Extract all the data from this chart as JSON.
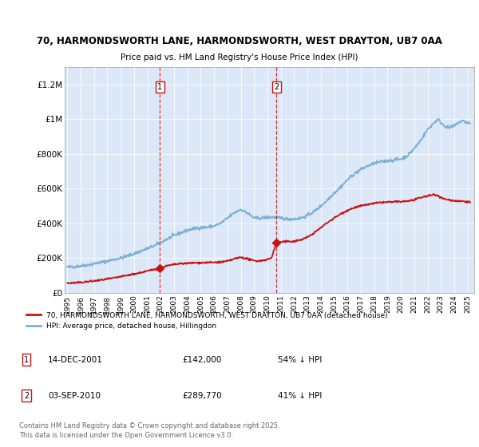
{
  "title_line1": "70, HARMONDSWORTH LANE, HARMONDSWORTH, WEST DRAYTON, UB7 0AA",
  "title_line2": "Price paid vs. HM Land Registry's House Price Index (HPI)",
  "background_color": "#ffffff",
  "plot_bg": "#dce8f8",
  "fill_between_color": "#dce8f8",
  "red_line_label": "70, HARMONDSWORTH LANE, HARMONDSWORTH, WEST DRAYTON, UB7 0AA (detached house)",
  "blue_line_label": "HPI: Average price, detached house, Hillingdon",
  "sale1_date": "14-DEC-2001",
  "sale1_price": 142000,
  "sale1_note": "54% ↓ HPI",
  "sale2_date": "03-SEP-2010",
  "sale2_price": 289770,
  "sale2_note": "41% ↓ HPI",
  "footer": "Contains HM Land Registry data © Crown copyright and database right 2025.\nThis data is licensed under the Open Government Licence v3.0.",
  "ylim": [
    0,
    1300000
  ],
  "xlim_start": 1994.8,
  "xlim_end": 2025.5,
  "sale1_x": 2001.95,
  "sale2_x": 2010.67,
  "hpi_color": "#7ab0d4",
  "price_color": "#cc1111",
  "vline_color": "#cc1111",
  "marker_color": "#cc1111",
  "hpi_anchors": [
    [
      1995.0,
      148000
    ],
    [
      1995.5,
      150000
    ],
    [
      1996.0,
      155000
    ],
    [
      1996.5,
      160000
    ],
    [
      1997.0,
      168000
    ],
    [
      1997.5,
      175000
    ],
    [
      1998.0,
      183000
    ],
    [
      1998.5,
      192000
    ],
    [
      1999.0,
      200000
    ],
    [
      1999.5,
      212000
    ],
    [
      2000.0,
      225000
    ],
    [
      2000.5,
      240000
    ],
    [
      2001.0,
      255000
    ],
    [
      2001.5,
      270000
    ],
    [
      2002.0,
      290000
    ],
    [
      2002.5,
      310000
    ],
    [
      2003.0,
      330000
    ],
    [
      2003.5,
      345000
    ],
    [
      2004.0,
      360000
    ],
    [
      2004.5,
      370000
    ],
    [
      2005.0,
      375000
    ],
    [
      2005.5,
      378000
    ],
    [
      2006.0,
      385000
    ],
    [
      2006.5,
      400000
    ],
    [
      2007.0,
      430000
    ],
    [
      2007.5,
      460000
    ],
    [
      2008.0,
      480000
    ],
    [
      2008.5,
      460000
    ],
    [
      2009.0,
      430000
    ],
    [
      2009.5,
      430000
    ],
    [
      2010.0,
      435000
    ],
    [
      2010.5,
      435000
    ],
    [
      2011.0,
      430000
    ],
    [
      2011.5,
      425000
    ],
    [
      2012.0,
      425000
    ],
    [
      2012.5,
      430000
    ],
    [
      2013.0,
      445000
    ],
    [
      2013.5,
      468000
    ],
    [
      2014.0,
      500000
    ],
    [
      2014.5,
      535000
    ],
    [
      2015.0,
      575000
    ],
    [
      2015.5,
      610000
    ],
    [
      2016.0,
      650000
    ],
    [
      2016.5,
      685000
    ],
    [
      2017.0,
      710000
    ],
    [
      2017.5,
      730000
    ],
    [
      2018.0,
      745000
    ],
    [
      2018.5,
      755000
    ],
    [
      2019.0,
      760000
    ],
    [
      2019.5,
      765000
    ],
    [
      2020.0,
      770000
    ],
    [
      2020.5,
      790000
    ],
    [
      2021.0,
      830000
    ],
    [
      2021.5,
      880000
    ],
    [
      2022.0,
      940000
    ],
    [
      2022.5,
      980000
    ],
    [
      2022.8,
      1000000
    ],
    [
      2023.0,
      980000
    ],
    [
      2023.3,
      960000
    ],
    [
      2023.6,
      950000
    ],
    [
      2024.0,
      960000
    ],
    [
      2024.3,
      980000
    ],
    [
      2024.6,
      990000
    ],
    [
      2025.0,
      980000
    ],
    [
      2025.2,
      975000
    ]
  ],
  "price_anchors": [
    [
      1995.0,
      55000
    ],
    [
      1995.5,
      57000
    ],
    [
      1996.0,
      60000
    ],
    [
      1996.5,
      64000
    ],
    [
      1997.0,
      68000
    ],
    [
      1997.5,
      73000
    ],
    [
      1998.0,
      79000
    ],
    [
      1998.5,
      85000
    ],
    [
      1999.0,
      93000
    ],
    [
      1999.5,
      100000
    ],
    [
      2000.0,
      108000
    ],
    [
      2000.5,
      116000
    ],
    [
      2001.0,
      125000
    ],
    [
      2001.5,
      135000
    ],
    [
      2001.95,
      142000
    ],
    [
      2002.3,
      152000
    ],
    [
      2002.8,
      160000
    ],
    [
      2003.2,
      165000
    ],
    [
      2003.6,
      168000
    ],
    [
      2004.0,
      170000
    ],
    [
      2004.5,
      172000
    ],
    [
      2005.0,
      173000
    ],
    [
      2005.5,
      174000
    ],
    [
      2006.0,
      175000
    ],
    [
      2006.5,
      177000
    ],
    [
      2007.0,
      182000
    ],
    [
      2007.5,
      195000
    ],
    [
      2008.0,
      205000
    ],
    [
      2008.5,
      195000
    ],
    [
      2009.0,
      185000
    ],
    [
      2009.3,
      183000
    ],
    [
      2009.6,
      186000
    ],
    [
      2010.0,
      192000
    ],
    [
      2010.3,
      200000
    ],
    [
      2010.67,
      289770
    ],
    [
      2011.0,
      292000
    ],
    [
      2011.3,
      295000
    ],
    [
      2011.6,
      295000
    ],
    [
      2012.0,
      297000
    ],
    [
      2012.5,
      305000
    ],
    [
      2013.0,
      320000
    ],
    [
      2013.5,
      345000
    ],
    [
      2014.0,
      375000
    ],
    [
      2014.5,
      405000
    ],
    [
      2015.0,
      430000
    ],
    [
      2015.5,
      455000
    ],
    [
      2016.0,
      475000
    ],
    [
      2016.5,
      490000
    ],
    [
      2017.0,
      500000
    ],
    [
      2017.5,
      508000
    ],
    [
      2018.0,
      515000
    ],
    [
      2018.5,
      520000
    ],
    [
      2019.0,
      522000
    ],
    [
      2019.5,
      524000
    ],
    [
      2020.0,
      525000
    ],
    [
      2020.5,
      528000
    ],
    [
      2021.0,
      535000
    ],
    [
      2021.5,
      548000
    ],
    [
      2022.0,
      558000
    ],
    [
      2022.5,
      565000
    ],
    [
      2022.8,
      560000
    ],
    [
      2023.0,
      548000
    ],
    [
      2023.3,
      540000
    ],
    [
      2023.6,
      535000
    ],
    [
      2024.0,
      530000
    ],
    [
      2024.5,
      528000
    ],
    [
      2025.0,
      525000
    ],
    [
      2025.2,
      522000
    ]
  ]
}
